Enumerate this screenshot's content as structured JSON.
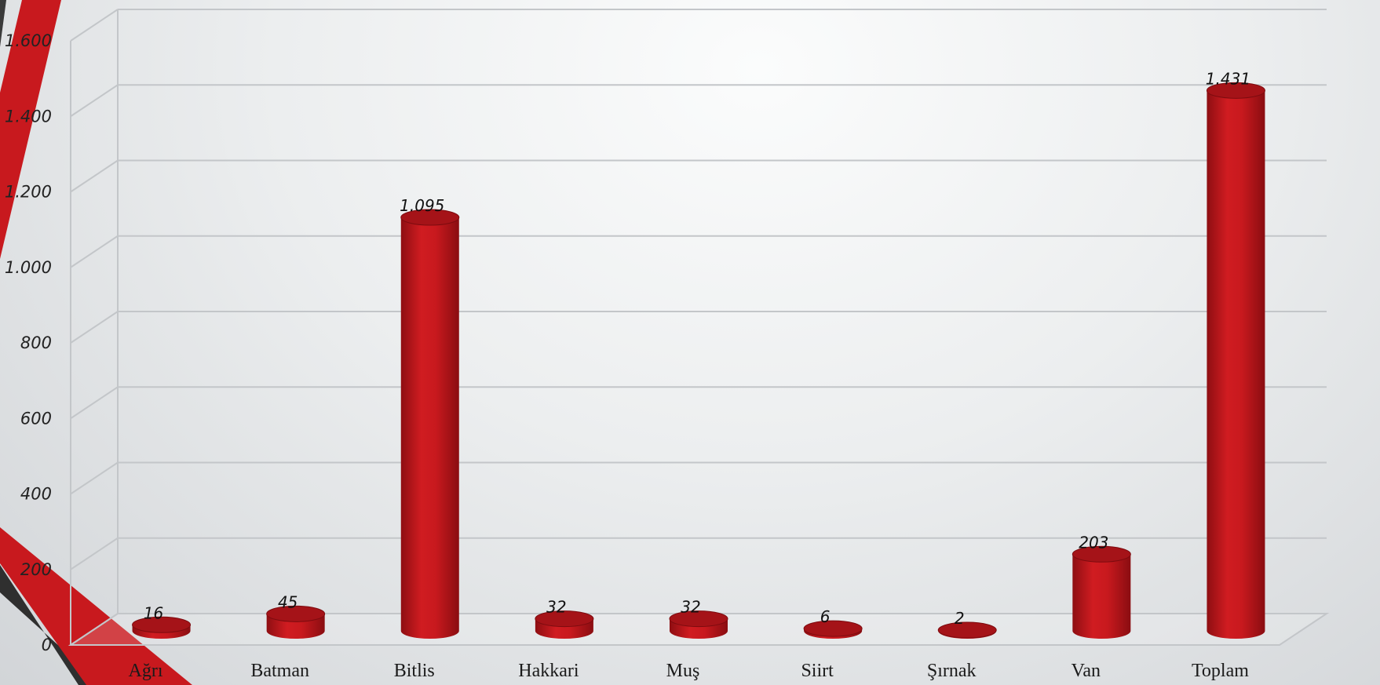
{
  "chart_data": {
    "type": "bar",
    "title": "",
    "xlabel": "",
    "ylabel": "",
    "categories": [
      "Ağrı",
      "Batman",
      "Bitlis",
      "Hakkari",
      "Muş",
      "Siirt",
      "Şırnak",
      "Van",
      "Toplam"
    ],
    "values": [
      16,
      45,
      1095,
      32,
      32,
      6,
      2,
      203,
      1431
    ],
    "value_labels": [
      "16",
      "45",
      "1.095",
      "32",
      "32",
      "6",
      "2",
      "203",
      "1.431"
    ],
    "yticks": [
      0,
      200,
      400,
      600,
      800,
      1000,
      1200,
      1400,
      1600
    ],
    "ytick_labels": [
      "0",
      "200",
      "400",
      "600",
      "800",
      "1.000",
      "1.200",
      "1.400",
      "1.600"
    ],
    "ylim": [
      0,
      1600
    ],
    "grid": true,
    "legend": "none",
    "bar_shape": "3d-cylinder",
    "colors": {
      "bar": "#c8191e",
      "bar_dark": "#8e0e12",
      "bar_top": "#a51318",
      "accent": "#c8191e",
      "dark": "#3a3a3a"
    }
  }
}
